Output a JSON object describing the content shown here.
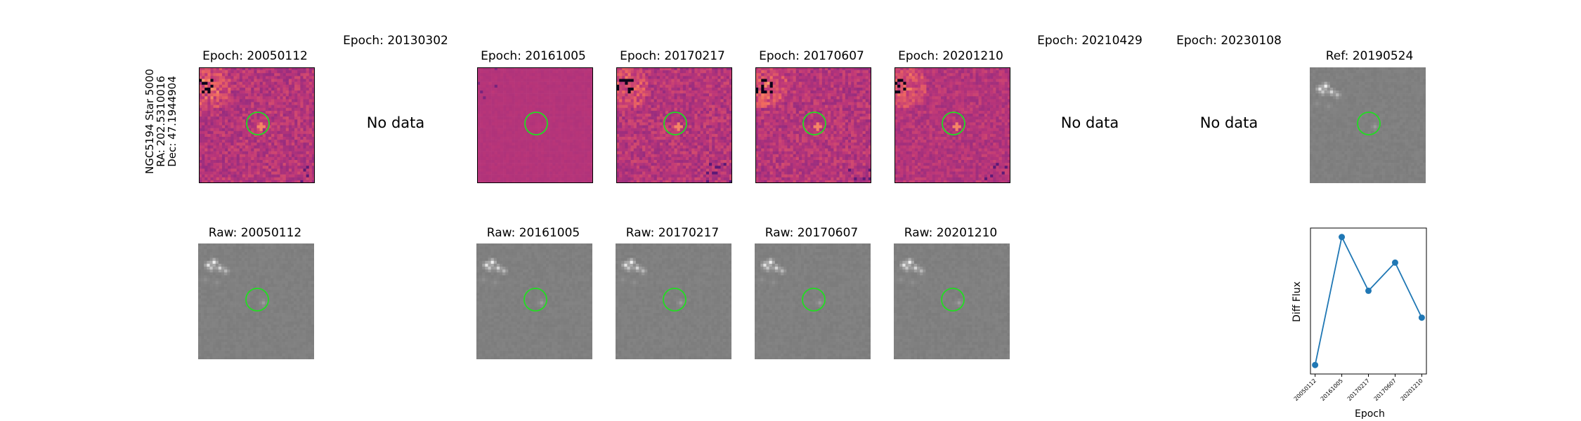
{
  "figure": {
    "star_label": [
      "NGC5194 Star 5000",
      "RA: 202.5310016",
      "Dec: 47.1944904"
    ],
    "no_data_text": "No data"
  },
  "diff_panels": [
    {
      "title": "Epoch: 20050112",
      "has_data": true,
      "style": "strong"
    },
    {
      "title": "Epoch: 20130302",
      "has_data": false
    },
    {
      "title": "Epoch: 20161005",
      "has_data": true,
      "style": "flat"
    },
    {
      "title": "Epoch: 20170217",
      "has_data": true,
      "style": "strong"
    },
    {
      "title": "Epoch: 20170607",
      "has_data": true,
      "style": "strong"
    },
    {
      "title": "Epoch: 20201210",
      "has_data": true,
      "style": "medium"
    },
    {
      "title": "Epoch: 20210429",
      "has_data": false
    },
    {
      "title": "Epoch: 20230108",
      "has_data": false
    }
  ],
  "ref_panel": {
    "title": "Ref: 20190524"
  },
  "raw_panels": [
    {
      "title": "Raw: 20050112"
    },
    {
      "title": "Raw: 20161005"
    },
    {
      "title": "Raw: 20170217"
    },
    {
      "title": "Raw: 20170607"
    },
    {
      "title": "Raw: 20201210"
    }
  ],
  "colors": {
    "circle": "#22dd22",
    "series": "#1f77b4",
    "raw_background": "#7c7c7c",
    "diff_background": "#a8407a"
  },
  "chart_data": {
    "type": "line",
    "title": "",
    "xlabel": "Epoch",
    "ylabel": "Diff Flux",
    "categories": [
      "20050112",
      "20161005",
      "20170217",
      "20170607",
      "20201210"
    ],
    "values": [
      0.0,
      1.0,
      0.58,
      0.8,
      0.37
    ],
    "ylim": [
      -0.07,
      1.07
    ],
    "y_ticks_shown": false,
    "grid": false,
    "legend": "none"
  }
}
